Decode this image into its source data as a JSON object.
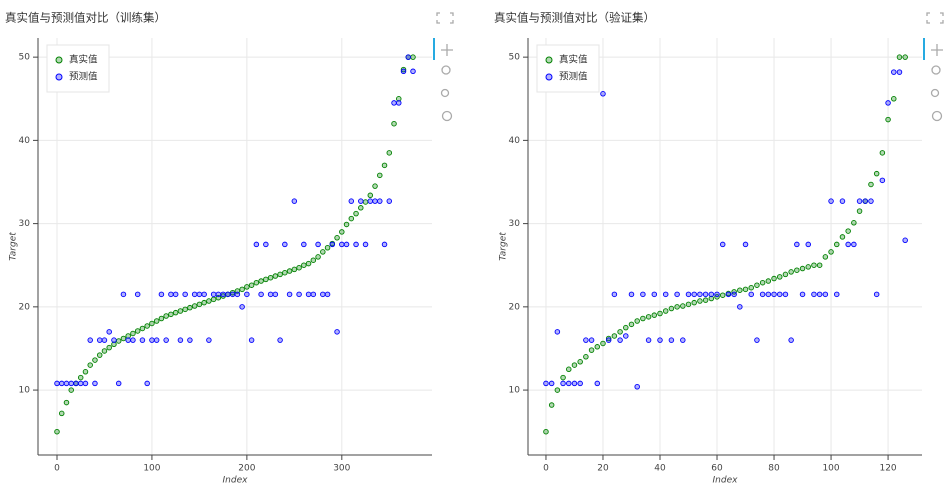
{
  "chart_data": [
    {
      "type": "scatter",
      "title": "真实值与预测值对比（训练集）",
      "x_label": "Index",
      "y_label": "Target",
      "x": [
        0,
        5,
        10,
        15,
        20,
        25,
        30,
        35,
        40,
        45,
        50,
        55,
        60,
        65,
        70,
        75,
        80,
        85,
        90,
        95,
        100,
        105,
        110,
        115,
        120,
        125,
        130,
        135,
        140,
        145,
        150,
        155,
        160,
        165,
        170,
        175,
        180,
        185,
        190,
        195,
        200,
        205,
        210,
        215,
        220,
        225,
        230,
        235,
        240,
        245,
        250,
        255,
        260,
        265,
        270,
        275,
        280,
        285,
        290,
        295,
        300,
        305,
        310,
        315,
        320,
        325,
        330,
        335,
        340,
        345,
        350,
        355,
        360,
        365,
        370,
        375
      ],
      "series": [
        {
          "name": "真实值",
          "color": "green",
          "values": [
            5,
            7.2,
            8.5,
            10,
            10.8,
            11.5,
            12.2,
            13,
            13.6,
            14.2,
            14.7,
            15.1,
            15.5,
            15.9,
            16.2,
            16.5,
            16.8,
            17.1,
            17.4,
            17.7,
            18,
            18.3,
            18.6,
            18.9,
            19.1,
            19.3,
            19.5,
            19.7,
            19.9,
            20.1,
            20.3,
            20.5,
            20.7,
            20.9,
            21.1,
            21.3,
            21.5,
            21.7,
            21.9,
            22.1,
            22.4,
            22.6,
            22.9,
            23.1,
            23.3,
            23.5,
            23.7,
            23.9,
            24.1,
            24.3,
            24.5,
            24.7,
            25,
            25.2,
            25.6,
            26,
            26.6,
            27.1,
            27.6,
            28.3,
            29,
            29.9,
            30.6,
            31.2,
            31.9,
            32.6,
            33.4,
            34.5,
            35.8,
            37,
            38.5,
            42,
            45,
            48.5,
            50,
            50
          ]
        },
        {
          "name": "预测值",
          "color": "blue",
          "values": [
            10.8,
            10.8,
            10.8,
            10.8,
            10.8,
            10.8,
            10.8,
            16,
            10.8,
            16,
            16,
            17,
            16,
            10.8,
            21.5,
            16,
            16,
            21.5,
            16,
            10.8,
            16,
            16,
            21.5,
            16,
            21.5,
            21.5,
            16,
            21.5,
            16,
            21.5,
            21.5,
            21.5,
            16,
            21.5,
            21.5,
            21.5,
            21.5,
            21.5,
            21.5,
            20,
            21.5,
            16,
            27.5,
            21.5,
            27.5,
            21.5,
            21.5,
            16,
            27.5,
            21.5,
            32.7,
            21.5,
            27.5,
            21.5,
            21.5,
            27.5,
            21.5,
            21.5,
            27.5,
            17,
            27.5,
            27.5,
            32.7,
            27.5,
            32.7,
            27.5,
            32.7,
            32.7,
            32.7,
            27.5,
            32.7,
            44.5,
            44.5,
            48.3,
            50,
            48.3
          ]
        }
      ],
      "xlim": [
        -20,
        395
      ],
      "ylim": [
        2.2,
        52.3
      ],
      "xticks": [
        0,
        100,
        200,
        300
      ],
      "yticks": [
        10,
        20,
        30,
        40,
        50
      ],
      "grid": true,
      "legend": "top_left"
    },
    {
      "type": "scatter",
      "title": "真实值与预测值对比（验证集）",
      "x_label": "Index",
      "y_label": "Target",
      "x": [
        0,
        2,
        4,
        6,
        8,
        10,
        12,
        14,
        16,
        18,
        20,
        22,
        24,
        26,
        28,
        30,
        32,
        34,
        36,
        38,
        40,
        42,
        44,
        46,
        48,
        50,
        52,
        54,
        56,
        58,
        60,
        62,
        64,
        66,
        68,
        70,
        72,
        74,
        76,
        78,
        80,
        82,
        84,
        86,
        88,
        90,
        92,
        94,
        96,
        98,
        100,
        102,
        104,
        106,
        108,
        110,
        112,
        114,
        116,
        118,
        120,
        122,
        124,
        126
      ],
      "series": [
        {
          "name": "真实值",
          "color": "green",
          "values": [
            5,
            8.2,
            10,
            11.5,
            12.5,
            13,
            13.4,
            14,
            14.8,
            15.2,
            15.6,
            16.2,
            16.5,
            17,
            17.5,
            17.9,
            18.3,
            18.6,
            18.8,
            19,
            19.2,
            19.5,
            19.8,
            20,
            20.1,
            20.3,
            20.5,
            20.7,
            20.8,
            21,
            21.2,
            21.4,
            21.6,
            21.8,
            22,
            22.1,
            22.3,
            22.6,
            22.9,
            23.1,
            23.4,
            23.6,
            23.9,
            24.2,
            24.4,
            24.6,
            24.8,
            25,
            25,
            26,
            26.6,
            27.5,
            28.4,
            29.1,
            30.1,
            31.5,
            32.7,
            34.7,
            36,
            38.5,
            42.5,
            45,
            50,
            50
          ]
        },
        {
          "name": "预测值",
          "color": "blue",
          "values": [
            10.8,
            10.8,
            17,
            10.8,
            10.8,
            10.8,
            10.8,
            16,
            16,
            10.8,
            45.6,
            16,
            21.5,
            16,
            16.5,
            21.5,
            10.4,
            21.5,
            16,
            21.5,
            16,
            21.5,
            16,
            21.5,
            16,
            21.5,
            21.5,
            21.5,
            21.5,
            21.5,
            21.5,
            27.5,
            21.5,
            21.5,
            20,
            27.5,
            21.5,
            16,
            21.5,
            21.5,
            21.5,
            21.5,
            21.5,
            16,
            27.5,
            21.5,
            27.5,
            21.5,
            21.5,
            21.5,
            32.7,
            21.5,
            32.7,
            27.5,
            27.5,
            32.7,
            32.7,
            32.7,
            21.5,
            35.2,
            44.5,
            48.2,
            48.2,
            28
          ]
        }
      ],
      "xlim": [
        -6.3,
        131.9
      ],
      "ylim": [
        2.2,
        52.3
      ],
      "xticks": [
        0,
        20,
        40,
        60,
        80,
        100,
        120
      ],
      "yticks": [
        10,
        20,
        30,
        40,
        50
      ],
      "grid": true,
      "legend": "top_left"
    }
  ]
}
